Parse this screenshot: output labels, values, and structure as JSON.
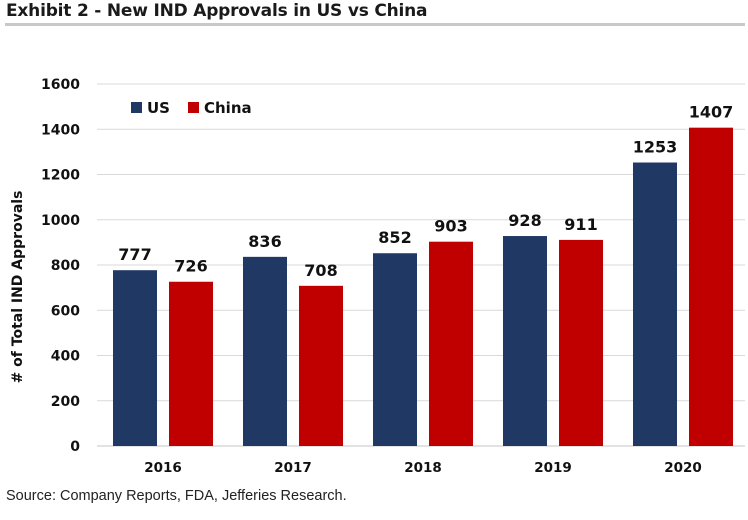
{
  "header": {
    "title": "Exhibit 2 - New IND Approvals in US vs China"
  },
  "footer": {
    "source": "Source: Company Reports, FDA, Jefferies Research."
  },
  "chart_data": {
    "type": "bar",
    "title": "Exhibit 2 - New IND Approvals in US vs China",
    "xlabel": "",
    "ylabel": "# of Total IND Approvals",
    "categories": [
      "2016",
      "2017",
      "2018",
      "2019",
      "2020"
    ],
    "series": [
      {
        "name": "US",
        "color": "#1f3864",
        "values": [
          777,
          836,
          852,
          928,
          1253
        ]
      },
      {
        "name": "China",
        "color": "#c00000",
        "values": [
          726,
          708,
          903,
          911,
          1407
        ]
      }
    ],
    "ylim": [
      0,
      1600
    ],
    "yticks": [
      0,
      200,
      400,
      600,
      800,
      1000,
      1200,
      1400,
      1600
    ],
    "grid": true,
    "legend": "top-left",
    "data_labels": true
  }
}
